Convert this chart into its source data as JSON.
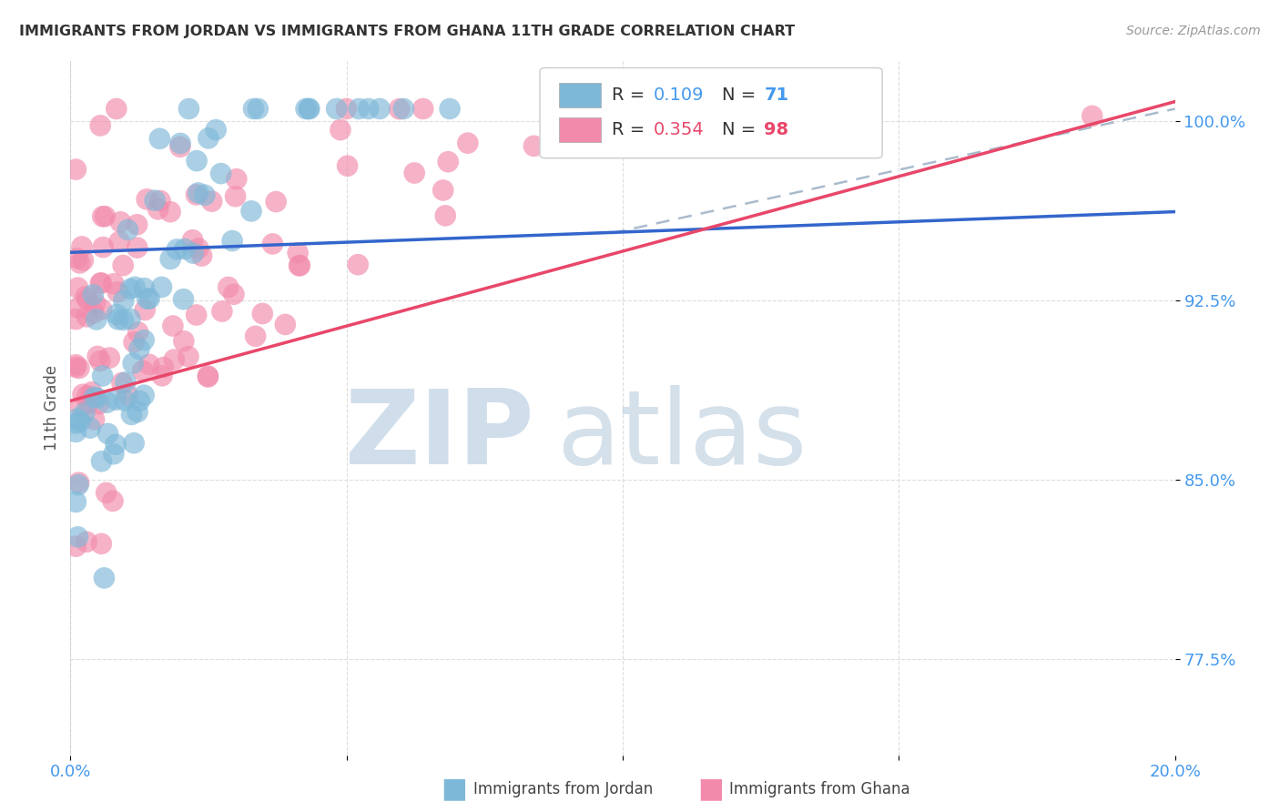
{
  "title": "IMMIGRANTS FROM JORDAN VS IMMIGRANTS FROM GHANA 11TH GRADE CORRELATION CHART",
  "source": "Source: ZipAtlas.com",
  "ylabel": "11th Grade",
  "y_ticks": [
    0.775,
    0.85,
    0.925,
    1.0
  ],
  "y_tick_labels": [
    "77.5%",
    "85.0%",
    "92.5%",
    "100.0%"
  ],
  "x_ticks": [
    0.0,
    0.05,
    0.1,
    0.15,
    0.2
  ],
  "x_tick_labels": [
    "0.0%",
    "",
    "",
    "",
    "20.0%"
  ],
  "x_lim": [
    0.0,
    0.2
  ],
  "y_lim": [
    0.735,
    1.025
  ],
  "jordan_R": 0.109,
  "jordan_N": 71,
  "ghana_R": 0.354,
  "ghana_N": 98,
  "jordan_color": "#7eb8d8",
  "ghana_color": "#f28bab",
  "jordan_line_color": "#3366cc",
  "ghana_line_color": "#e8476a",
  "dashed_line_color": "#aabbcc",
  "legend_label_jordan": "Immigrants from Jordan",
  "legend_label_ghana": "Immigrants from Ghana",
  "watermark_zip": "ZIP",
  "watermark_atlas": "atlas",
  "background_color": "#ffffff",
  "grid_color": "#dddddd",
  "title_color": "#333333",
  "tick_label_color": "#4499ee",
  "jordan_line_x0": 0.0,
  "jordan_line_y0": 0.945,
  "jordan_line_x1": 0.2,
  "jordan_line_y1": 0.962,
  "ghana_line_x0": 0.0,
  "ghana_line_y0": 0.883,
  "ghana_line_x1": 0.2,
  "ghana_line_y1": 1.008,
  "dashed_line_x0": 0.098,
  "dashed_line_y0": 0.953,
  "dashed_line_x1": 0.2,
  "dashed_line_y1": 1.005
}
